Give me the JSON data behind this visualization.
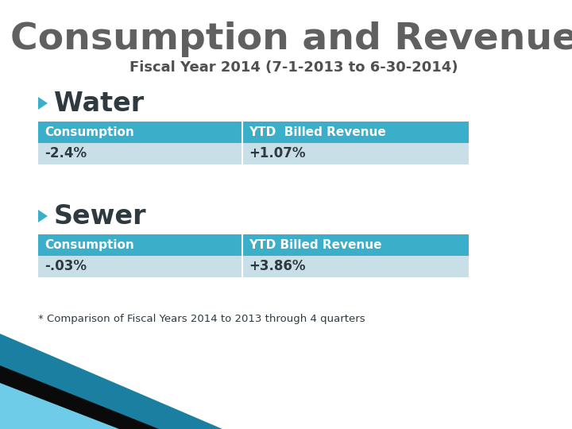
{
  "title": "Consumption and Revenue",
  "subtitle": "Fiscal Year 2014 (7-1-2013 to 6-30-2014)",
  "section1_label": "Water",
  "section2_label": "Sewer",
  "table_header_water": [
    "Consumption",
    "YTD  Billed Revenue"
  ],
  "table_header_sewer": [
    "Consumption",
    "YTD Billed Revenue"
  ],
  "water_row": [
    "-2.4%",
    "+1.07%"
  ],
  "sewer_row": [
    "-.03%",
    "+3.86%"
  ],
  "footnote": "* Comparison of Fiscal Years 2014 to 2013 through 4 quarters",
  "header_bg": "#3BAEC9",
  "row_bg": "#C8DFE8",
  "header_text": "#FFFFFF",
  "row_text": "#2E3A40",
  "title_color": "#606060",
  "subtitle_color": "#505050",
  "bg_color": "#FFFFFF",
  "section_color": "#2E3A40",
  "bullet_color": "#3BAEC9",
  "tri1_color": "#1A7FA0",
  "tri2_color": "#0A0A0A",
  "tri3_color": "#6ECCE8"
}
